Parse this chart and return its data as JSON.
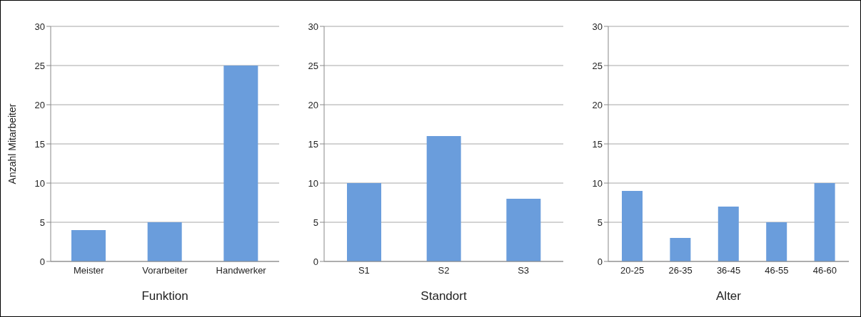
{
  "chart_data": [
    {
      "type": "bar",
      "categories": [
        "Meister",
        "Vorarbeiter",
        "Handwerker"
      ],
      "values": [
        4,
        5,
        25
      ],
      "color": "#6a9ddc",
      "ylim": [
        0,
        30
      ],
      "yticks": [
        0,
        5,
        10,
        15,
        20,
        25,
        30
      ],
      "grid": "y",
      "xlabel": "Funktion",
      "ylabel": "Anzahl Mitarbeiter"
    },
    {
      "type": "bar",
      "categories": [
        "S1",
        "S2",
        "S3"
      ],
      "values": [
        10,
        16,
        8
      ],
      "color": "#6a9ddc",
      "ylim": [
        0,
        30
      ],
      "yticks": [
        0,
        5,
        10,
        15,
        20,
        25,
        30
      ],
      "grid": "y",
      "xlabel": "Standort"
    },
    {
      "type": "bar",
      "categories": [
        "20-25",
        "26-35",
        "36-45",
        "46-55",
        "46-60"
      ],
      "values": [
        9,
        3,
        7,
        5,
        10
      ],
      "color": "#6a9ddc",
      "ylim": [
        0,
        30
      ],
      "yticks": [
        0,
        5,
        10,
        15,
        20,
        25,
        30
      ],
      "grid": "y",
      "xlabel": "Alter"
    }
  ]
}
